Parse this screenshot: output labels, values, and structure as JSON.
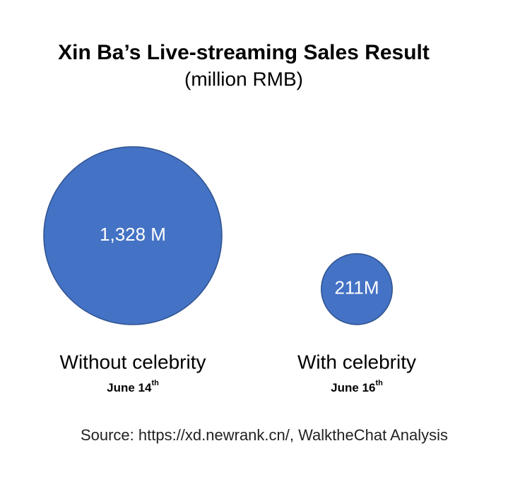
{
  "chart_data": {
    "type": "bubble",
    "title": "Xin Ba’s Live-streaming Sales Result",
    "subtitle": "(million RMB)",
    "categories": [
      "Without celebrity",
      "With celebrity"
    ],
    "dates": [
      {
        "text": "June 14",
        "sup": "th"
      },
      {
        "text": "June 16",
        "sup": "th"
      }
    ],
    "values": [
      1328,
      211
    ],
    "value_labels": [
      "1,328 M",
      "211M"
    ],
    "color": "#4472c4",
    "source": "Source: https://xd.newrank.cn/, WalktheChat Analysis"
  }
}
